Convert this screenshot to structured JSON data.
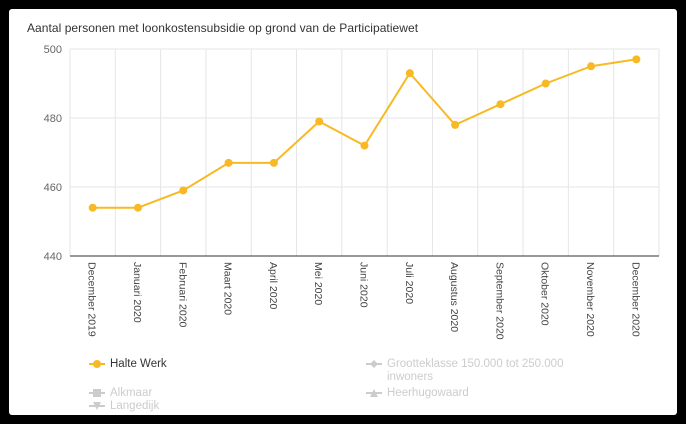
{
  "chart_data": {
    "type": "line",
    "title": "Aantal personen met loonkostensubsidie op grond van de Participatiewet",
    "categories": [
      "December 2019",
      "Januari 2020",
      "Februari 2020",
      "Maart 2020",
      "April 2020",
      "Mei 2020",
      "Juni 2020",
      "Juli 2020",
      "Augustus 2020",
      "September 2020",
      "Oktober 2020",
      "November 2020",
      "December 2020"
    ],
    "series": [
      {
        "name": "Halte Werk",
        "values": [
          454,
          454,
          459,
          467,
          467,
          479,
          472,
          493,
          478,
          484,
          490,
          495,
          497
        ],
        "color": "#f7b924",
        "visible": true
      }
    ],
    "ylim": [
      440,
      500
    ],
    "yticks": [
      440,
      460,
      480,
      500
    ],
    "grid": true,
    "legend_placement": "bottom",
    "legend": [
      {
        "label": "Halte Werk",
        "visible": true,
        "symbol": "circle",
        "color": "#f7b924"
      },
      {
        "label": "Grootteklasse 150.000 tot 250.000 inwoners",
        "visible": false,
        "symbol": "diamond",
        "color": "#cccccc"
      },
      {
        "label": "Alkmaar",
        "visible": false,
        "symbol": "square",
        "color": "#cccccc"
      },
      {
        "label": "Heerhugowaard",
        "visible": false,
        "symbol": "triangle",
        "color": "#cccccc"
      },
      {
        "label": "Langedijk",
        "visible": false,
        "symbol": "triangle-down",
        "color": "#cccccc"
      }
    ]
  }
}
